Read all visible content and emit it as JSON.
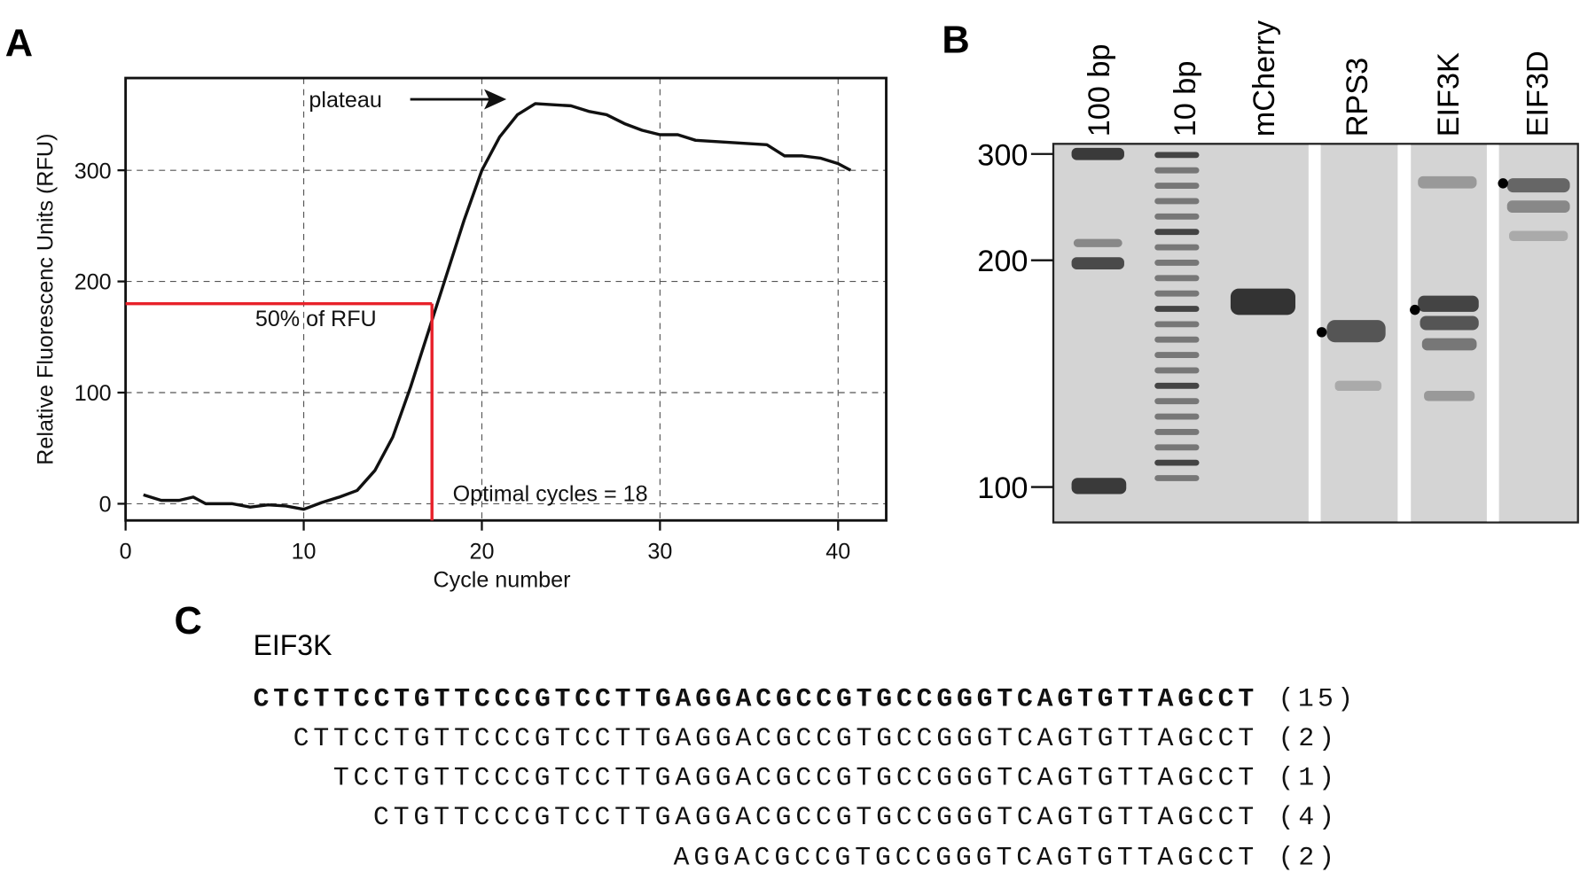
{
  "panel_labels": [
    "A",
    "B",
    "C"
  ],
  "chart_data": {
    "type": "line",
    "x": [
      1,
      2,
      3,
      3.8,
      4.5,
      6,
      7,
      8,
      9,
      10,
      11,
      12,
      13,
      14,
      15,
      16,
      17,
      18,
      19,
      20,
      21,
      22,
      23,
      24,
      25,
      26,
      27,
      28,
      29,
      30,
      31,
      32,
      33,
      34,
      35,
      36,
      37,
      38,
      39,
      40,
      40.7
    ],
    "values": [
      8,
      3,
      3,
      6,
      0,
      0,
      -3,
      -1,
      -2,
      -5,
      1,
      6,
      12,
      30,
      60,
      105,
      155,
      205,
      255,
      300,
      330,
      350,
      360,
      359,
      358,
      353,
      350,
      342,
      336,
      332,
      332,
      327,
      326,
      325,
      324,
      323,
      313,
      313,
      311,
      306,
      300
    ],
    "color": "#111111",
    "xlim": [
      0,
      42.7
    ],
    "ylim": [
      -15,
      383
    ],
    "xticks": [
      0,
      10,
      20,
      30,
      40
    ],
    "yticks": [
      0,
      100,
      200,
      300
    ],
    "grid": true,
    "xlabel": "Cycle number",
    "ylabel": "Relative Fluorescenc Units (RFU)",
    "reference": {
      "x": 17.2,
      "y": 180,
      "color": "#e8212a"
    },
    "annotations": [
      "plateau",
      "50% of RFU",
      "Optimal cycles = 18"
    ]
  },
  "gel": {
    "lanes": [
      "100 bp",
      "10 bp",
      "mCherry",
      "RPS3",
      "EIF3K",
      "EIF3D"
    ],
    "markers": [
      "300",
      "200",
      "100"
    ]
  },
  "sequences": {
    "title": "EIF3K",
    "rows": [
      {
        "seq": "CTCTTCCTGTTCCCGTCCTTGAGGACGCCGTGCCGGGTCAGTGTTAGCCT",
        "count": "(15)"
      },
      {
        "seq": "CTTCCTGTTCCCGTCCTTGAGGACGCCGTGCCGGGTCAGTGTTAGCCT",
        "count": "(2)"
      },
      {
        "seq": "TCCTGTTCCCGTCCTTGAGGACGCCGTGCCGGGTCAGTGTTAGCCT",
        "count": "(1)"
      },
      {
        "seq": "CTGTTCCCGTCCTTGAGGACGCCGTGCCGGGTCAGTGTTAGCCT",
        "count": "(4)"
      },
      {
        "seq": "AGGACGCCGTGCCGGGTCAGTGTTAGCCT",
        "count": "(2)"
      }
    ]
  }
}
